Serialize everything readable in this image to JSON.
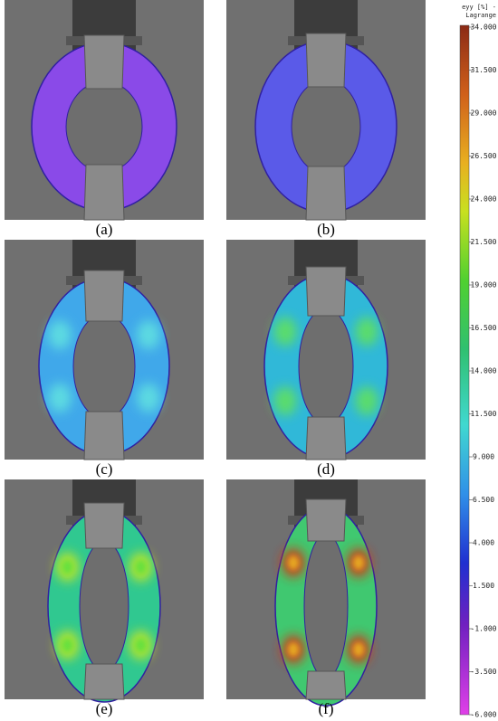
{
  "panels": [
    {
      "label": "(a)"
    },
    {
      "label": "(b)"
    },
    {
      "label": "(c)"
    },
    {
      "label": "(d)"
    },
    {
      "label": "(e)"
    },
    {
      "label": "(f)"
    }
  ],
  "colorbar": {
    "title": [
      "eyy [%] -",
      "Lagrange"
    ],
    "ticks": [
      "34.000",
      "31.500",
      "29.000",
      "26.500",
      "24.000",
      "21.500",
      "19.000",
      "16.500",
      "14.000",
      "11.500",
      "9.000",
      "6.500",
      "4.000",
      "1.500",
      "-1.000",
      "-3.500",
      "-6.000"
    ]
  }
}
